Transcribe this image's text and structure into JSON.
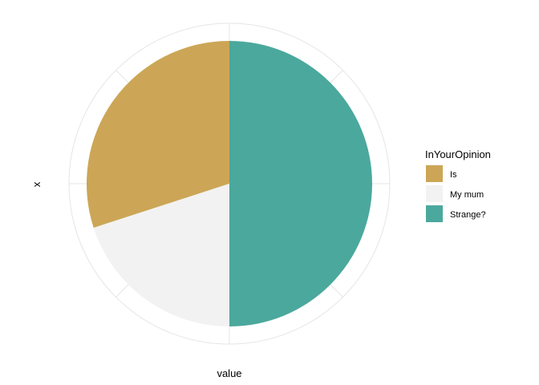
{
  "chart_data": {
    "type": "pie",
    "xlabel": "value",
    "ylabel": "x",
    "legend": {
      "title": "InYourOpinion",
      "position": "right"
    },
    "grid": true,
    "series": [
      {
        "name": "Is",
        "value": 0.3,
        "color": "#CCA656"
      },
      {
        "name": "My mum",
        "value": 0.2,
        "color": "#F2F2F2"
      },
      {
        "name": "Strange?",
        "value": 0.5,
        "color": "#4BA89D"
      }
    ]
  }
}
